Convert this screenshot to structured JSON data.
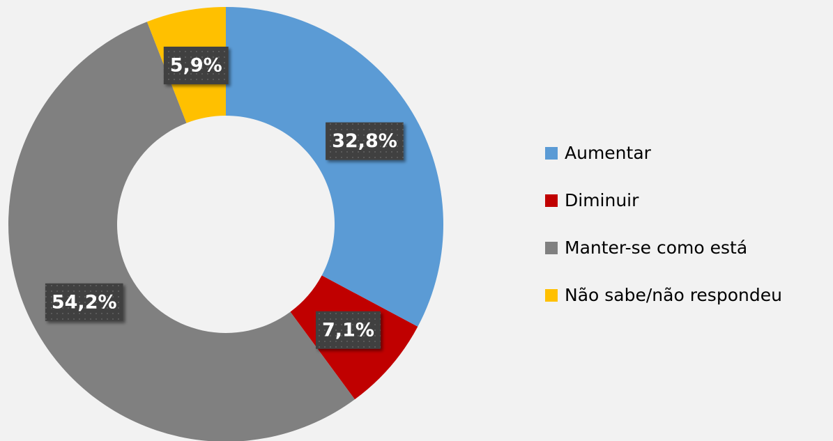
{
  "chart_data": {
    "type": "donut",
    "categories": [
      "Aumentar",
      "Diminuir",
      "Manter-se como está",
      "Não sabe/não respondeu"
    ],
    "values": [
      32.8,
      7.1,
      54.2,
      5.9
    ],
    "value_labels": [
      "32,8%",
      "7,1%",
      "54,2%",
      "5,9%"
    ],
    "colors": [
      "#5b9bd5",
      "#c00000",
      "#808080",
      "#ffc000"
    ],
    "legend": "right"
  }
}
